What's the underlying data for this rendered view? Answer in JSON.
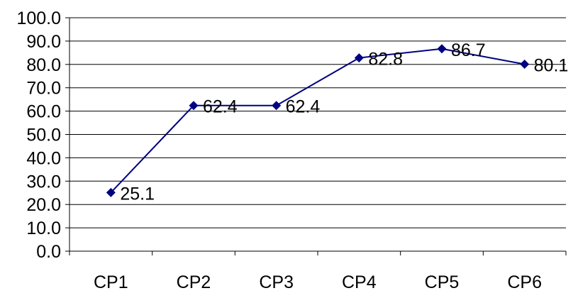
{
  "chart_data": {
    "type": "line",
    "categories": [
      "CP1",
      "CP2",
      "CP3",
      "CP4",
      "CP5",
      "CP6"
    ],
    "series": [
      {
        "values": [
          25.1,
          62.4,
          62.4,
          82.8,
          86.7,
          80.1
        ],
        "color": "#000080"
      }
    ],
    "data_labels": [
      "25.1",
      "62.4",
      "62.4",
      "82.8",
      "86.7",
      "80.1"
    ],
    "y_ticks": [
      "0.0",
      "10.0",
      "20.0",
      "30.0",
      "40.0",
      "50.0",
      "60.0",
      "70.0",
      "80.0",
      "90.0",
      "100.0"
    ],
    "ylim": [
      0,
      100
    ],
    "y_step": 10,
    "grid": true,
    "marker": "diamond",
    "title": "",
    "xlabel": "",
    "ylabel": ""
  }
}
